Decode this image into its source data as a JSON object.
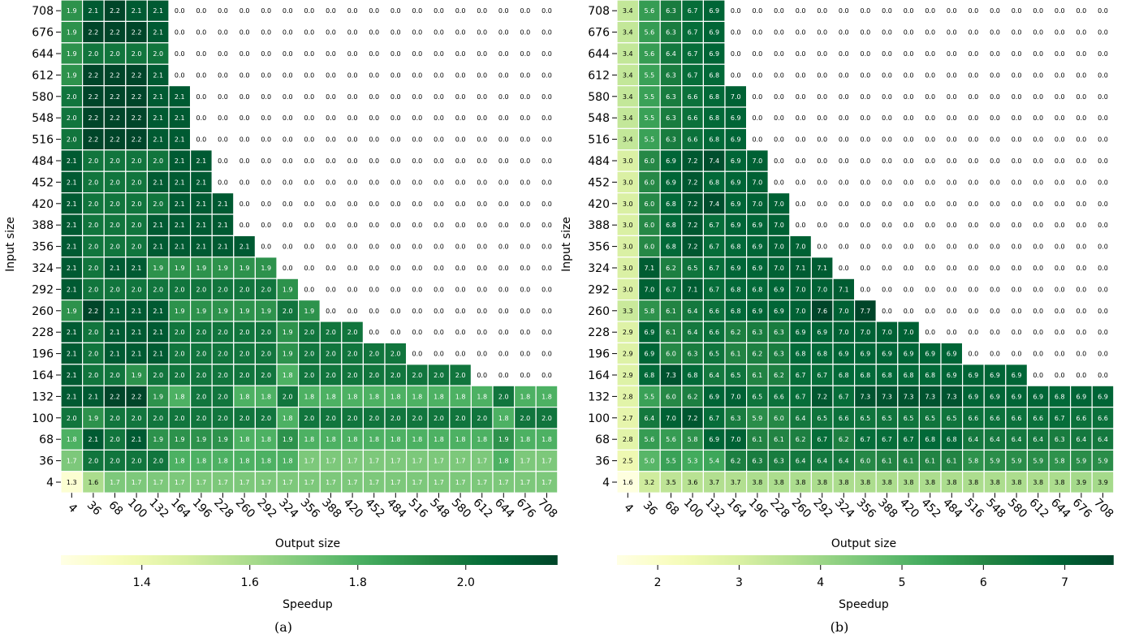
{
  "chart_data": [
    {
      "type": "heatmap",
      "caption": "(a)",
      "xlabel": "Output size",
      "ylabel": "Input size",
      "colorbar_label": "Speedup",
      "colormap": "YlGn",
      "vmin": 1.25,
      "vmax": 2.17,
      "colorbar_ticks": [
        "1.4",
        "1.6",
        "1.8",
        "2.0"
      ],
      "x": [
        "4",
        "36",
        "68",
        "100",
        "132",
        "164",
        "196",
        "228",
        "260",
        "292",
        "324",
        "356",
        "388",
        "420",
        "452",
        "484",
        "516",
        "548",
        "580",
        "612",
        "644",
        "676",
        "708"
      ],
      "y": [
        "708",
        "676",
        "644",
        "612",
        "580",
        "548",
        "516",
        "484",
        "452",
        "420",
        "388",
        "356",
        "324",
        "292",
        "260",
        "228",
        "196",
        "164",
        "132",
        "100",
        "68",
        "36",
        "4"
      ],
      "values": [
        [
          "1.9",
          "2.1",
          "2.2",
          "2.1",
          "2.1"
        ],
        [
          "1.9",
          "2.2",
          "2.2",
          "2.2",
          "2.1"
        ],
        [
          "1.9",
          "2.0",
          "2.0",
          "2.0",
          "2.0"
        ],
        [
          "1.9",
          "2.2",
          "2.2",
          "2.2",
          "2.1"
        ],
        [
          "2.0",
          "2.2",
          "2.2",
          "2.2",
          "2.1",
          "2.1"
        ],
        [
          "2.0",
          "2.2",
          "2.2",
          "2.2",
          "2.1",
          "2.1"
        ],
        [
          "2.0",
          "2.2",
          "2.2",
          "2.2",
          "2.1",
          "2.1"
        ],
        [
          "2.1",
          "2.0",
          "2.0",
          "2.0",
          "2.0",
          "2.1",
          "2.1"
        ],
        [
          "2.1",
          "2.0",
          "2.0",
          "2.0",
          "2.1",
          "2.1",
          "2.1"
        ],
        [
          "2.1",
          "2.0",
          "2.0",
          "2.0",
          "2.0",
          "2.1",
          "2.1",
          "2.1"
        ],
        [
          "2.1",
          "2.0",
          "2.0",
          "2.0",
          "2.1",
          "2.1",
          "2.1",
          "2.1"
        ],
        [
          "2.1",
          "2.0",
          "2.0",
          "2.0",
          "2.1",
          "2.1",
          "2.1",
          "2.1",
          "2.1"
        ],
        [
          "2.1",
          "2.0",
          "2.1",
          "2.1",
          "1.9",
          "1.9",
          "1.9",
          "1.9",
          "1.9",
          "1.9"
        ],
        [
          "2.1",
          "2.0",
          "2.0",
          "2.0",
          "2.0",
          "2.0",
          "2.0",
          "2.0",
          "2.0",
          "2.0",
          "1.9"
        ],
        [
          "1.9",
          "2.2",
          "2.1",
          "2.1",
          "2.1",
          "1.9",
          "1.9",
          "1.9",
          "1.9",
          "1.9",
          "2.0",
          "1.9"
        ],
        [
          "2.1",
          "2.0",
          "2.1",
          "2.1",
          "2.1",
          "2.0",
          "2.0",
          "2.0",
          "2.0",
          "2.0",
          "1.9",
          "2.0",
          "2.0",
          "2.0"
        ],
        [
          "2.1",
          "2.0",
          "2.1",
          "2.1",
          "2.1",
          "2.0",
          "2.0",
          "2.0",
          "2.0",
          "2.0",
          "1.9",
          "2.0",
          "2.0",
          "2.0",
          "2.0",
          "2.0"
        ],
        [
          "2.1",
          "2.0",
          "2.0",
          "1.9",
          "2.0",
          "2.0",
          "2.0",
          "2.0",
          "2.0",
          "2.0",
          "1.8",
          "2.0",
          "2.0",
          "2.0",
          "2.0",
          "2.0",
          "2.0",
          "2.0",
          "2.0"
        ],
        [
          "2.1",
          "2.1",
          "2.2",
          "2.2",
          "1.9",
          "1.8",
          "2.0",
          "2.0",
          "1.8",
          "1.8",
          "2.0",
          "1.8",
          "1.8",
          "1.8",
          "1.8",
          "1.8",
          "1.8",
          "1.8",
          "1.8",
          "1.8",
          "2.0",
          "1.8",
          "1.8"
        ],
        [
          "2.0",
          "1.9",
          "2.0",
          "2.0",
          "2.0",
          "2.0",
          "2.0",
          "2.0",
          "2.0",
          "2.0",
          "1.8",
          "2.0",
          "2.0",
          "2.0",
          "2.0",
          "2.0",
          "2.0",
          "2.0",
          "2.0",
          "2.0",
          "1.8",
          "2.0",
          "2.0"
        ],
        [
          "1.8",
          "2.1",
          "2.0",
          "2.1",
          "1.9",
          "1.9",
          "1.9",
          "1.9",
          "1.8",
          "1.8",
          "1.9",
          "1.8",
          "1.8",
          "1.8",
          "1.8",
          "1.8",
          "1.8",
          "1.8",
          "1.8",
          "1.8",
          "1.9",
          "1.8",
          "1.8"
        ],
        [
          "1.7",
          "2.0",
          "2.0",
          "2.0",
          "2.0",
          "1.8",
          "1.8",
          "1.8",
          "1.8",
          "1.8",
          "1.8",
          "1.7",
          "1.7",
          "1.7",
          "1.7",
          "1.7",
          "1.7",
          "1.7",
          "1.7",
          "1.7",
          "1.8",
          "1.7",
          "1.7"
        ],
        [
          "1.3",
          "1.6",
          "1.7",
          "1.7",
          "1.7",
          "1.7",
          "1.7",
          "1.7",
          "1.7",
          "1.7",
          "1.7",
          "1.7",
          "1.7",
          "1.7",
          "1.7",
          "1.7",
          "1.7",
          "1.7",
          "1.7",
          "1.7",
          "1.7",
          "1.7",
          "1.7"
        ]
      ],
      "fill_rest_value": "0.0",
      "grid": false,
      "colorbar_placement": "bottom"
    },
    {
      "type": "heatmap",
      "caption": "(b)",
      "xlabel": "Output size",
      "ylabel": "Input size",
      "colorbar_label": "Speedup",
      "colormap": "YlGn",
      "vmin": 1.5,
      "vmax": 7.6,
      "colorbar_ticks": [
        "2",
        "3",
        "4",
        "5",
        "6",
        "7"
      ],
      "x": [
        "4",
        "36",
        "68",
        "100",
        "132",
        "164",
        "196",
        "228",
        "260",
        "292",
        "324",
        "356",
        "388",
        "420",
        "452",
        "484",
        "516",
        "548",
        "580",
        "612",
        "644",
        "676",
        "708"
      ],
      "y": [
        "708",
        "676",
        "644",
        "612",
        "580",
        "548",
        "516",
        "484",
        "452",
        "420",
        "388",
        "356",
        "324",
        "292",
        "260",
        "228",
        "196",
        "164",
        "132",
        "100",
        "68",
        "36",
        "4"
      ],
      "values": [
        [
          "3.4",
          "5.6",
          "6.3",
          "6.7",
          "6.9"
        ],
        [
          "3.4",
          "5.6",
          "6.3",
          "6.7",
          "6.9"
        ],
        [
          "3.4",
          "5.6",
          "6.4",
          "6.7",
          "6.9"
        ],
        [
          "3.4",
          "5.5",
          "6.3",
          "6.7",
          "6.8"
        ],
        [
          "3.4",
          "5.5",
          "6.3",
          "6.6",
          "6.8",
          "7.0"
        ],
        [
          "3.4",
          "5.5",
          "6.3",
          "6.6",
          "6.8",
          "6.9"
        ],
        [
          "3.4",
          "5.5",
          "6.3",
          "6.6",
          "6.8",
          "6.9"
        ],
        [
          "3.0",
          "6.0",
          "6.9",
          "7.2",
          "7.4",
          "6.9",
          "7.0"
        ],
        [
          "3.0",
          "6.0",
          "6.9",
          "7.2",
          "6.8",
          "6.9",
          "7.0"
        ],
        [
          "3.0",
          "6.0",
          "6.8",
          "7.2",
          "7.4",
          "6.9",
          "7.0",
          "7.0"
        ],
        [
          "3.0",
          "6.0",
          "6.8",
          "7.2",
          "6.7",
          "6.9",
          "6.9",
          "7.0"
        ],
        [
          "3.0",
          "6.0",
          "6.8",
          "7.2",
          "6.7",
          "6.8",
          "6.9",
          "7.0",
          "7.0"
        ],
        [
          "3.0",
          "7.1",
          "6.2",
          "6.5",
          "6.7",
          "6.9",
          "6.9",
          "7.0",
          "7.1",
          "7.1"
        ],
        [
          "3.0",
          "7.0",
          "6.7",
          "7.1",
          "6.7",
          "6.8",
          "6.8",
          "6.9",
          "7.0",
          "7.0",
          "7.1"
        ],
        [
          "3.3",
          "5.8",
          "6.1",
          "6.4",
          "6.6",
          "6.8",
          "6.9",
          "6.9",
          "7.0",
          "7.6",
          "7.0",
          "7.7"
        ],
        [
          "2.9",
          "6.9",
          "6.1",
          "6.4",
          "6.6",
          "6.2",
          "6.3",
          "6.3",
          "6.9",
          "6.9",
          "7.0",
          "7.0",
          "7.0",
          "7.0"
        ],
        [
          "2.9",
          "6.9",
          "6.0",
          "6.3",
          "6.5",
          "6.1",
          "6.2",
          "6.3",
          "6.8",
          "6.8",
          "6.9",
          "6.9",
          "6.9",
          "6.9",
          "6.9",
          "6.9"
        ],
        [
          "2.9",
          "6.8",
          "7.3",
          "6.8",
          "6.4",
          "6.5",
          "6.1",
          "6.2",
          "6.7",
          "6.7",
          "6.8",
          "6.8",
          "6.8",
          "6.8",
          "6.8",
          "6.9",
          "6.9",
          "6.9",
          "6.9"
        ],
        [
          "2.8",
          "5.5",
          "6.0",
          "6.2",
          "6.9",
          "7.0",
          "6.5",
          "6.6",
          "6.7",
          "7.2",
          "6.7",
          "7.3",
          "7.3",
          "7.3",
          "7.3",
          "7.3",
          "6.9",
          "6.9",
          "6.9",
          "6.9",
          "6.8",
          "6.9",
          "6.9"
        ],
        [
          "2.7",
          "6.4",
          "7.0",
          "7.2",
          "6.7",
          "6.3",
          "5.9",
          "6.0",
          "6.4",
          "6.5",
          "6.6",
          "6.5",
          "6.5",
          "6.5",
          "6.5",
          "6.5",
          "6.6",
          "6.6",
          "6.6",
          "6.6",
          "6.7",
          "6.6",
          "6.6"
        ],
        [
          "2.8",
          "5.6",
          "5.6",
          "5.8",
          "6.9",
          "7.0",
          "6.1",
          "6.1",
          "6.2",
          "6.7",
          "6.2",
          "6.7",
          "6.7",
          "6.7",
          "6.8",
          "6.8",
          "6.4",
          "6.4",
          "6.4",
          "6.4",
          "6.3",
          "6.4",
          "6.4"
        ],
        [
          "2.5",
          "5.0",
          "5.5",
          "5.3",
          "5.4",
          "6.2",
          "6.3",
          "6.3",
          "6.4",
          "6.4",
          "6.4",
          "6.0",
          "6.1",
          "6.1",
          "6.1",
          "6.1",
          "5.8",
          "5.9",
          "5.9",
          "5.9",
          "5.8",
          "5.9",
          "5.9"
        ],
        [
          "1.6",
          "3.2",
          "3.5",
          "3.6",
          "3.7",
          "3.7",
          "3.8",
          "3.8",
          "3.8",
          "3.8",
          "3.8",
          "3.8",
          "3.8",
          "3.8",
          "3.8",
          "3.8",
          "3.8",
          "3.8",
          "3.8",
          "3.8",
          "3.8",
          "3.9",
          "3.9"
        ]
      ],
      "fill_rest_value": "0.0",
      "grid": false,
      "colorbar_placement": "bottom"
    }
  ]
}
